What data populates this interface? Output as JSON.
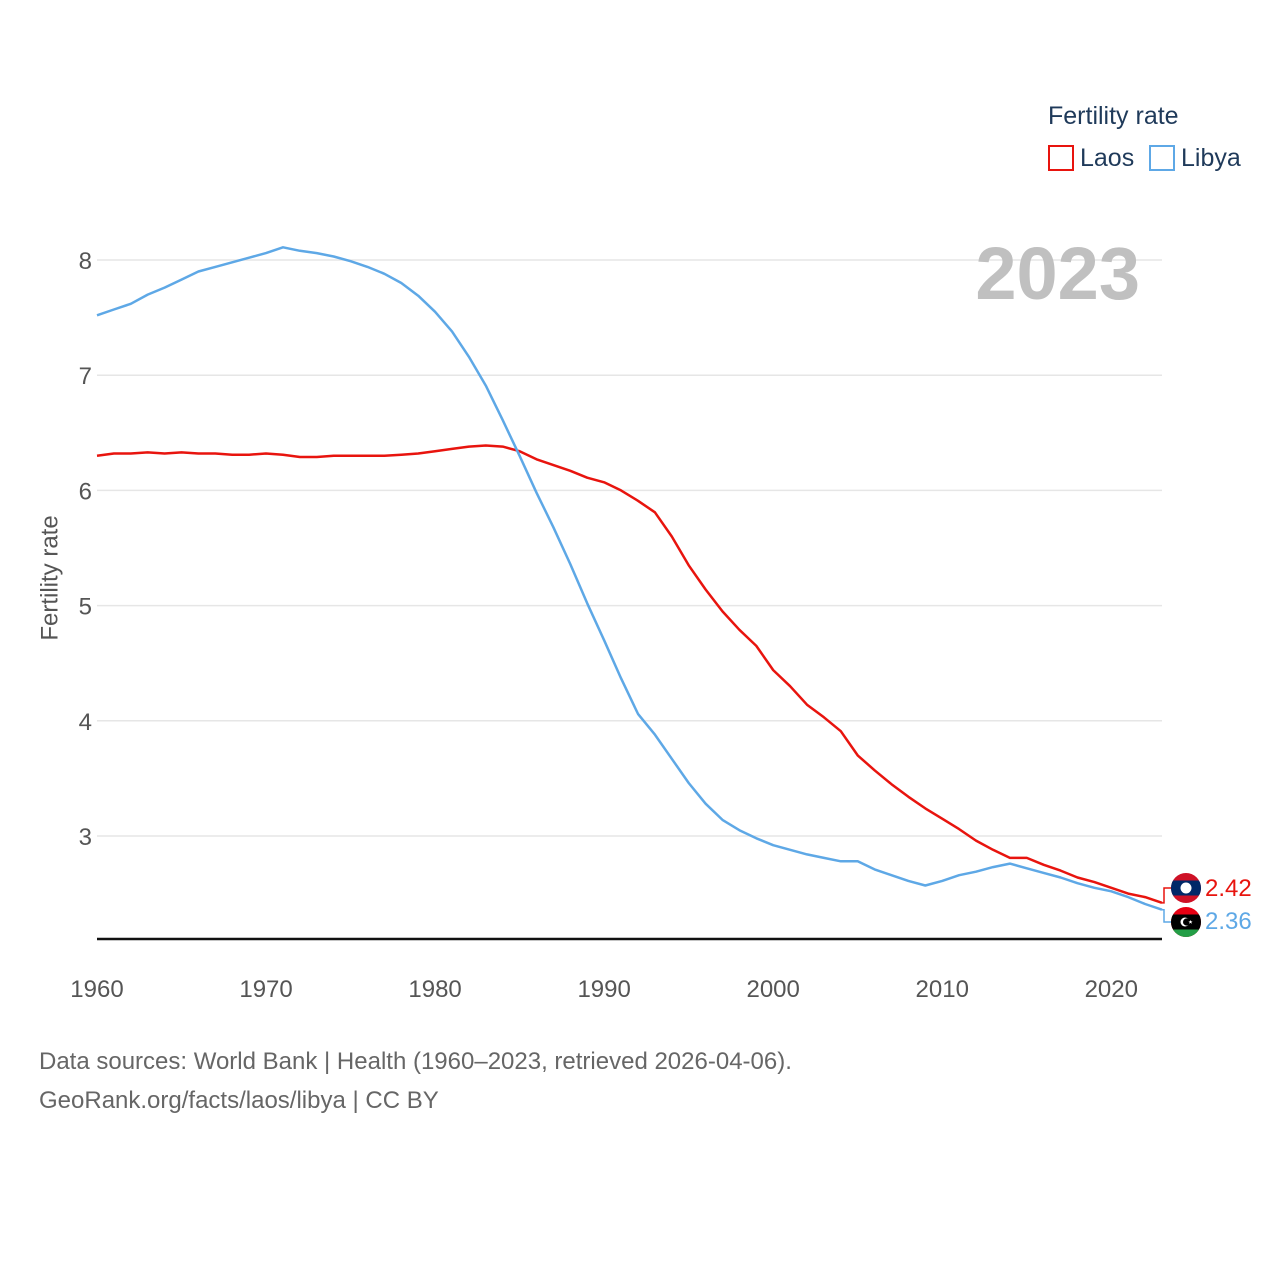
{
  "colors": {
    "laos": "#e8140e",
    "libya": "#5ea8e6",
    "grid": "#e6e6e6",
    "axis": "#111111",
    "year": "#c0c0c0"
  },
  "legend": {
    "title": "Fertility rate",
    "items": [
      "Laos",
      "Libya"
    ]
  },
  "current_year": "2023",
  "source": {
    "line1": "Data sources: World Bank | Health (1960–2023, retrieved 2026-04-06).",
    "line2": "GeoRank.org/facts/laos/libya | CC BY"
  },
  "end_labels": {
    "laos": "2.42",
    "libya": "2.36"
  },
  "flags": {
    "laos": "laos-flag-icon",
    "libya": "libya-flag-icon"
  },
  "chart_data": {
    "type": "line",
    "title": "",
    "xlabel": "",
    "ylabel": "Fertility rate",
    "xlim": [
      1960,
      2023
    ],
    "ylim": [
      2.1,
      8.6
    ],
    "x_ticks": [
      1960,
      1970,
      1980,
      1990,
      2000,
      2010,
      2020
    ],
    "y_ticks": [
      3,
      4,
      5,
      6,
      7,
      8
    ],
    "grid": true,
    "legend_position": "top-right",
    "x": [
      1960,
      1961,
      1962,
      1963,
      1964,
      1965,
      1966,
      1967,
      1968,
      1969,
      1970,
      1971,
      1972,
      1973,
      1974,
      1975,
      1976,
      1977,
      1978,
      1979,
      1980,
      1981,
      1982,
      1983,
      1984,
      1985,
      1986,
      1987,
      1988,
      1989,
      1990,
      1991,
      1992,
      1993,
      1994,
      1995,
      1996,
      1997,
      1998,
      1999,
      2000,
      2001,
      2002,
      2003,
      2004,
      2005,
      2006,
      2007,
      2008,
      2009,
      2010,
      2011,
      2012,
      2013,
      2014,
      2015,
      2016,
      2017,
      2018,
      2019,
      2020,
      2021,
      2022,
      2023
    ],
    "series": [
      {
        "name": "Laos",
        "values": [
          6.3,
          6.32,
          6.32,
          6.33,
          6.32,
          6.33,
          6.32,
          6.32,
          6.31,
          6.31,
          6.32,
          6.31,
          6.29,
          6.29,
          6.3,
          6.3,
          6.3,
          6.3,
          6.31,
          6.32,
          6.34,
          6.36,
          6.38,
          6.39,
          6.38,
          6.34,
          6.27,
          6.22,
          6.17,
          6.11,
          6.07,
          6.0,
          5.91,
          5.81,
          5.6,
          5.35,
          5.14,
          4.95,
          4.79,
          4.65,
          4.44,
          4.3,
          4.14,
          4.03,
          3.91,
          3.7,
          3.57,
          3.45,
          3.34,
          3.24,
          3.15,
          3.06,
          2.96,
          2.88,
          2.81,
          2.81,
          2.75,
          2.7,
          2.64,
          2.6,
          2.55,
          2.5,
          2.47,
          2.42
        ]
      },
      {
        "name": "Libya",
        "values": [
          7.52,
          7.57,
          7.62,
          7.7,
          7.76,
          7.83,
          7.9,
          7.94,
          7.98,
          8.02,
          8.06,
          8.11,
          8.08,
          8.06,
          8.03,
          7.99,
          7.94,
          7.88,
          7.8,
          7.69,
          7.55,
          7.38,
          7.16,
          6.91,
          6.61,
          6.3,
          5.98,
          5.68,
          5.36,
          5.02,
          4.7,
          4.37,
          4.06,
          3.88,
          3.67,
          3.46,
          3.28,
          3.14,
          3.05,
          2.98,
          2.92,
          2.88,
          2.84,
          2.81,
          2.78,
          2.78,
          2.71,
          2.66,
          2.61,
          2.57,
          2.61,
          2.66,
          2.69,
          2.73,
          2.76,
          2.72,
          2.68,
          2.64,
          2.59,
          2.55,
          2.52,
          2.47,
          2.41,
          2.36
        ]
      }
    ]
  }
}
